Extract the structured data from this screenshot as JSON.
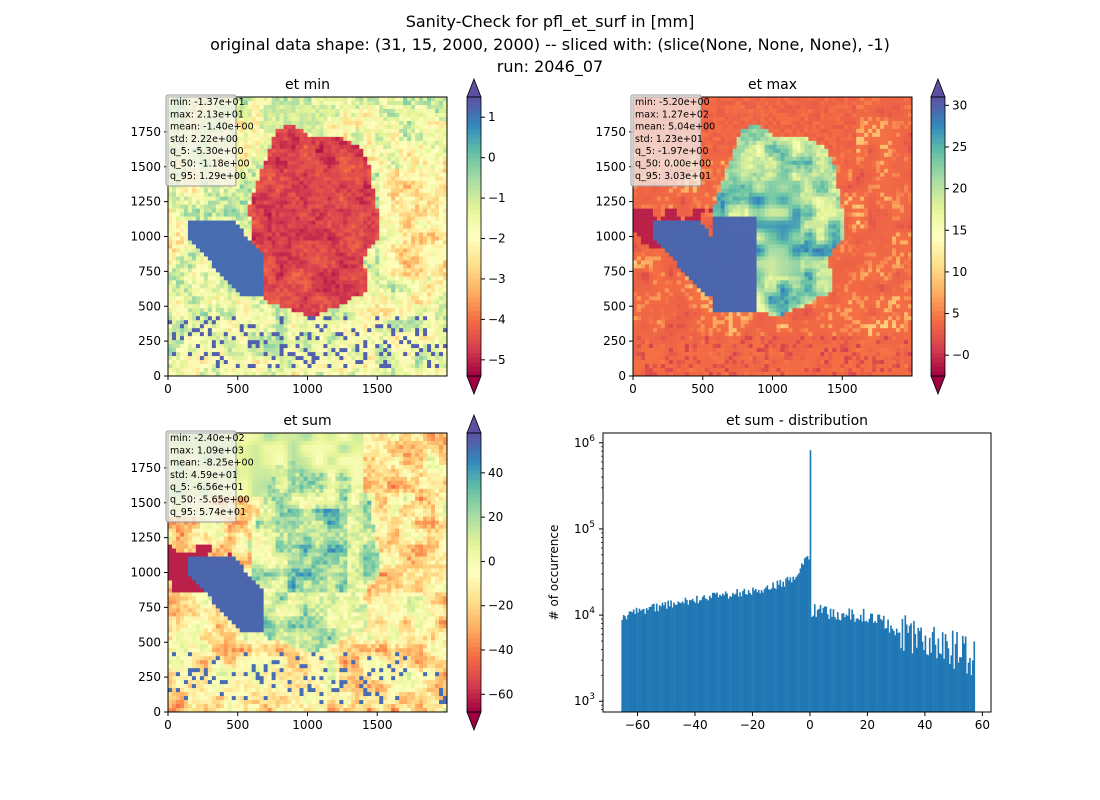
{
  "figure": {
    "title_lines": [
      "Sanity-Check for pfl_et_surf in [mm]",
      "original data shape: (31, 15, 2000, 2000) -- sliced with: (slice(None, None, None), -1)",
      "run: 2046_07"
    ]
  },
  "chart_data": [
    {
      "type": "heatmap",
      "title": "et min",
      "xlim": [
        0,
        2000
      ],
      "ylim": [
        0,
        2000
      ],
      "xticks": [
        0,
        500,
        1000,
        1500
      ],
      "yticks": [
        0,
        250,
        500,
        750,
        1000,
        1250,
        1500,
        1750
      ],
      "colormap": "Spectral",
      "colorbar": {
        "vmin": -5.4,
        "vmax": 1.5,
        "ticks": [
          1,
          0,
          -1,
          -2,
          -3,
          -4,
          -5
        ],
        "tick_labels": [
          "1",
          "0",
          "−1",
          "−2",
          "−3",
          "−4",
          "−5"
        ],
        "extend": "both"
      },
      "stats": [
        "min: -1.37e+01",
        "max: 2.13e+01",
        "mean: -1.40e+00",
        "std: 2.22e+00",
        "q_5: -5.30e+00",
        "q_50: -1.18e+00",
        "q_95: 1.29e+00"
      ]
    },
    {
      "type": "heatmap",
      "title": "et max",
      "xlim": [
        0,
        2000
      ],
      "ylim": [
        0,
        2000
      ],
      "xticks": [
        0,
        500,
        1000,
        1500
      ],
      "yticks": [
        0,
        250,
        500,
        750,
        1000,
        1250,
        1500,
        1750
      ],
      "colormap": "Spectral",
      "colorbar": {
        "vmin": -2.5,
        "vmax": 31,
        "ticks": [
          30,
          25,
          20,
          15,
          10,
          5,
          0
        ],
        "tick_labels": [
          "30",
          "25",
          "20",
          "15",
          "10",
          "5",
          "−0"
        ],
        "extend": "both"
      },
      "stats": [
        "min: -5.20e+00",
        "max: 1.27e+02",
        "mean: 5.04e+00",
        "std: 1.23e+01",
        "q_5: -1.97e+00",
        "q_50: 0.00e+00",
        "q_95: 3.03e+01"
      ]
    },
    {
      "type": "heatmap",
      "title": "et sum",
      "xlim": [
        0,
        2000
      ],
      "ylim": [
        0,
        2000
      ],
      "xticks": [
        0,
        500,
        1000,
        1500
      ],
      "yticks": [
        0,
        250,
        500,
        750,
        1000,
        1250,
        1500,
        1750
      ],
      "colormap": "Spectral",
      "colorbar": {
        "vmin": -68,
        "vmax": 58,
        "ticks": [
          40,
          20,
          0,
          -20,
          -40,
          -60
        ],
        "tick_labels": [
          "40",
          "20",
          "0",
          "−20",
          "−40",
          "−60"
        ],
        "extend": "both"
      },
      "stats": [
        "min: -2.40e+02",
        "max: 1.09e+03",
        "mean: -8.25e+00",
        "std: 4.59e+01",
        "q_5: -6.56e+01",
        "q_50: -5.65e+00",
        "q_95: 5.74e+01"
      ]
    },
    {
      "type": "bar",
      "subtype": "histogram",
      "title": "et sum - distribution",
      "ylabel": "# of occurrence",
      "yscale": "log",
      "xlim": [
        -72,
        63
      ],
      "ylim": [
        750,
        1300000
      ],
      "xticks": [
        -60,
        -40,
        -20,
        0,
        20,
        40,
        60
      ],
      "xtick_labels": [
        "−60",
        "−40",
        "−20",
        "0",
        "20",
        "40",
        "60"
      ],
      "yticks": [
        1000,
        10000,
        100000,
        1000000
      ],
      "ytick_labels": [
        "10^3",
        "10^4",
        "10^5",
        "10^6"
      ],
      "color": "#1f77b4",
      "bin_range": [
        -65.6,
        57.4
      ],
      "bin_count": 246,
      "profile": {
        "x": [
          -65.6,
          -60,
          -50,
          -40,
          -30,
          -20,
          -10,
          -5,
          -2,
          -1,
          -0.25,
          0,
          0.25,
          1,
          5,
          10,
          20,
          25,
          30,
          40,
          50,
          57.4
        ],
        "y": [
          9500,
          11000,
          13000,
          15000,
          17000,
          19000,
          23000,
          28000,
          40000,
          50000,
          40000,
          820000,
          9000,
          12000,
          11000,
          10500,
          9500,
          9000,
          6500,
          5000,
          4000,
          3000
        ]
      }
    }
  ]
}
